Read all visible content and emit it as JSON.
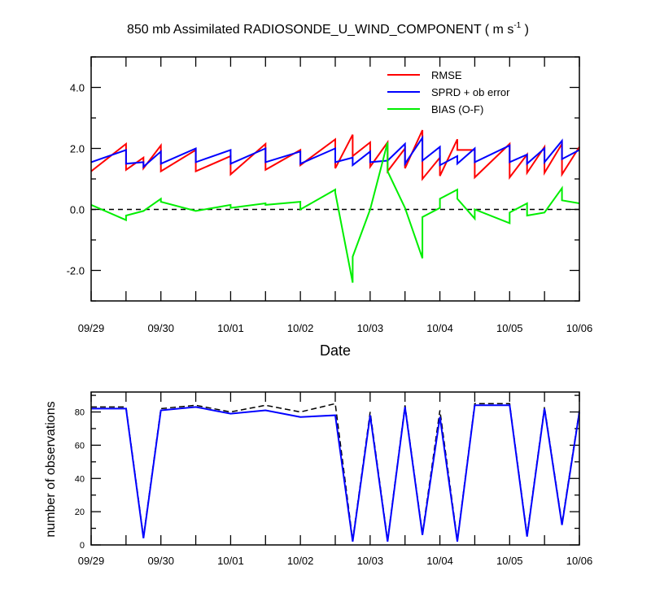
{
  "chart_data": [
    {
      "type": "line",
      "title": "850 mb Assimilated RADIOSONDE_U_WIND_COMPONENT ( m s",
      "title_unit_exponent": "-1",
      "title_suffix": " )",
      "xlabel": "Date",
      "ylabel": "",
      "xlim": [
        0,
        7
      ],
      "ylim": [
        -3.0,
        5.0
      ],
      "xtick_labels": [
        "09/29",
        "09/30",
        "10/01",
        "10/02",
        "10/03",
        "10/04",
        "10/05",
        "10/06"
      ],
      "ytick_values": [
        -2.0,
        0.0,
        2.0,
        4.0
      ],
      "ytick_labels": [
        "-2.0",
        "0.0",
        "2.0",
        "4.0"
      ],
      "reference_line": 0.0,
      "legend_position": "top-right",
      "colors": {
        "rmse": "#ff0000",
        "sprd": "#0000ff",
        "bias": "#00ee00",
        "reference": "#000000"
      },
      "series": [
        {
          "name": "RMSE",
          "key": "rmse",
          "x": [
            0.0,
            0.5,
            0.5,
            0.75,
            0.75,
            1.0,
            1.0,
            1.5,
            1.5,
            2.0,
            2.0,
            2.5,
            2.5,
            3.0,
            3.0,
            3.5,
            3.5,
            3.75,
            3.75,
            4.0,
            4.0,
            4.25,
            4.25,
            4.5,
            4.5,
            4.75,
            4.75,
            5.0,
            5.0,
            5.25,
            5.25,
            5.5,
            5.5,
            6.0,
            6.0,
            6.25,
            6.25,
            6.5,
            6.5,
            6.75,
            6.75,
            7.0
          ],
          "y": [
            1.25,
            2.15,
            1.3,
            1.7,
            1.35,
            2.1,
            1.25,
            1.95,
            1.25,
            1.75,
            1.15,
            2.15,
            1.3,
            1.95,
            1.45,
            2.3,
            1.35,
            2.45,
            1.75,
            2.2,
            1.4,
            2.2,
            1.25,
            2.0,
            1.35,
            2.6,
            1.0,
            1.7,
            1.1,
            2.3,
            1.95,
            1.95,
            1.05,
            2.15,
            1.05,
            1.8,
            1.2,
            2.05,
            1.2,
            2.15,
            1.15,
            2.05
          ]
        },
        {
          "name": "SPRD + ob error",
          "key": "sprd",
          "x": [
            0.0,
            0.5,
            0.5,
            0.75,
            0.75,
            1.0,
            1.0,
            1.5,
            1.5,
            2.0,
            2.0,
            2.5,
            2.5,
            3.0,
            3.0,
            3.5,
            3.5,
            3.75,
            3.75,
            4.0,
            4.0,
            4.25,
            4.25,
            4.5,
            4.5,
            4.75,
            4.75,
            5.0,
            5.0,
            5.25,
            5.25,
            5.5,
            5.5,
            6.0,
            6.0,
            6.25,
            6.25,
            6.5,
            6.5,
            6.75,
            6.75,
            7.0
          ],
          "y": [
            1.55,
            1.95,
            1.5,
            1.55,
            1.4,
            1.9,
            1.5,
            2.0,
            1.55,
            1.95,
            1.5,
            2.0,
            1.55,
            1.9,
            1.5,
            2.0,
            1.55,
            1.7,
            1.45,
            1.9,
            1.55,
            1.6,
            1.6,
            2.15,
            1.5,
            2.35,
            1.6,
            2.05,
            1.45,
            1.75,
            1.5,
            2.0,
            1.55,
            2.1,
            1.55,
            1.8,
            1.5,
            2.0,
            1.55,
            2.25,
            1.65,
            1.95
          ]
        },
        {
          "name": "BIAS (O-F)",
          "key": "bias",
          "x": [
            0.0,
            0.5,
            0.5,
            0.75,
            0.75,
            1.0,
            1.0,
            1.5,
            1.5,
            2.0,
            2.0,
            2.5,
            2.5,
            3.0,
            3.0,
            3.5,
            3.5,
            3.75,
            3.75,
            4.0,
            4.0,
            4.25,
            4.25,
            4.5,
            4.5,
            4.75,
            4.75,
            5.0,
            5.0,
            5.25,
            5.25,
            5.5,
            5.5,
            6.0,
            6.0,
            6.25,
            6.25,
            6.5,
            6.5,
            6.75,
            6.75,
            7.0
          ],
          "y": [
            0.15,
            -0.35,
            -0.2,
            -0.05,
            -0.05,
            0.35,
            0.25,
            -0.05,
            -0.05,
            0.15,
            0.05,
            0.2,
            0.15,
            0.25,
            0.0,
            0.65,
            0.55,
            -2.4,
            -1.55,
            0.0,
            0.0,
            2.2,
            1.25,
            0.05,
            0.05,
            -1.6,
            -0.25,
            0.05,
            0.35,
            0.65,
            0.35,
            -0.3,
            0.0,
            -0.45,
            -0.1,
            0.2,
            -0.2,
            -0.1,
            -0.1,
            0.7,
            0.3,
            0.2
          ]
        }
      ]
    },
    {
      "type": "line",
      "ylabel": "number of observations",
      "xlim": [
        0,
        7
      ],
      "ylim": [
        0,
        92
      ],
      "xtick_labels": [
        "09/29",
        "09/30",
        "10/01",
        "10/02",
        "10/03",
        "10/04",
        "10/05",
        "10/06"
      ],
      "ytick_values": [
        0,
        20,
        40,
        60,
        80
      ],
      "ytick_labels": [
        "0",
        "20",
        "40",
        "60",
        "80"
      ],
      "colors": {
        "assimilated": "#0000ff",
        "possible": "#000000"
      },
      "series": [
        {
          "name": "assimilated",
          "key": "assimilated",
          "style": "solid",
          "x": [
            0.0,
            0.5,
            0.75,
            1.0,
            1.5,
            2.0,
            2.5,
            3.0,
            3.5,
            3.75,
            4.0,
            4.25,
            4.5,
            4.75,
            5.0,
            5.25,
            5.5,
            6.0,
            6.25,
            6.5,
            6.75,
            7.0
          ],
          "y": [
            82,
            82,
            4,
            81,
            83,
            79,
            81,
            77,
            78,
            2,
            78,
            2,
            83,
            6,
            77,
            2,
            84,
            84,
            5,
            82,
            12,
            80
          ]
        },
        {
          "name": "possible",
          "key": "possible",
          "style": "dashed",
          "x": [
            0.0,
            0.5,
            0.75,
            1.0,
            1.5,
            2.0,
            2.5,
            3.0,
            3.5,
            3.75,
            4.0,
            4.25,
            4.5,
            4.75,
            5.0,
            5.25,
            5.5,
            6.0,
            6.25,
            6.5,
            6.75,
            7.0
          ],
          "y": [
            83,
            83,
            5,
            82,
            84,
            80,
            84,
            80,
            85,
            3,
            80,
            3,
            84,
            7,
            81,
            3,
            85,
            85,
            6,
            83,
            13,
            81
          ]
        }
      ]
    }
  ]
}
